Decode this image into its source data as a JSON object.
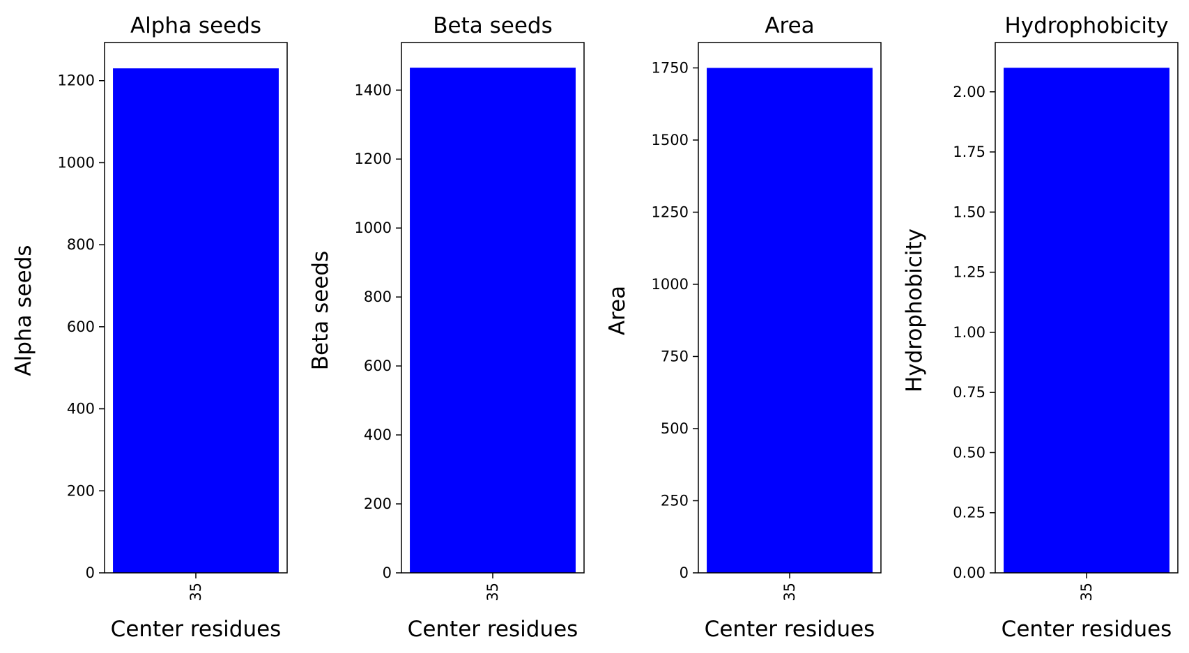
{
  "colors": {
    "bar": "#0000ff",
    "axis": "#000000",
    "background": "#ffffff"
  },
  "chart_data": [
    {
      "type": "bar",
      "title": "Alpha seeds",
      "xlabel": "Center residues",
      "ylabel": "Alpha seeds",
      "categories": [
        "35"
      ],
      "values": [
        1230
      ],
      "ylim": [
        0,
        1293
      ],
      "yticks": [
        0,
        200,
        400,
        600,
        800,
        1000,
        1200
      ],
      "ytick_labels": [
        "0",
        "200",
        "400",
        "600",
        "800",
        "1000",
        "1200"
      ],
      "grid": false
    },
    {
      "type": "bar",
      "title": "Beta seeds",
      "xlabel": "Center residues",
      "ylabel": "Beta seeds",
      "categories": [
        "35"
      ],
      "values": [
        1465
      ],
      "ylim": [
        0,
        1538
      ],
      "yticks": [
        0,
        200,
        400,
        600,
        800,
        1000,
        1200,
        1400
      ],
      "ytick_labels": [
        "0",
        "200",
        "400",
        "600",
        "800",
        "1000",
        "1200",
        "1400"
      ],
      "grid": false
    },
    {
      "type": "bar",
      "title": "Area",
      "xlabel": "Center residues",
      "ylabel": "Area",
      "categories": [
        "35"
      ],
      "values": [
        1750
      ],
      "ylim": [
        0,
        1838
      ],
      "yticks": [
        0,
        250,
        500,
        750,
        1000,
        1250,
        1500,
        1750
      ],
      "ytick_labels": [
        "0",
        "250",
        "500",
        "750",
        "1000",
        "1250",
        "1500",
        "1750"
      ],
      "grid": false
    },
    {
      "type": "bar",
      "title": "Hydrophobicity",
      "xlabel": "Center residues",
      "ylabel": "Hydrophobicity",
      "categories": [
        "35"
      ],
      "values": [
        2.1
      ],
      "ylim": [
        0,
        2.205
      ],
      "yticks": [
        0,
        0.25,
        0.5,
        0.75,
        1.0,
        1.25,
        1.5,
        1.75,
        2.0
      ],
      "ytick_labels": [
        "0.00",
        "0.25",
        "0.50",
        "0.75",
        "1.00",
        "1.25",
        "1.50",
        "1.75",
        "2.00"
      ],
      "grid": false
    }
  ]
}
